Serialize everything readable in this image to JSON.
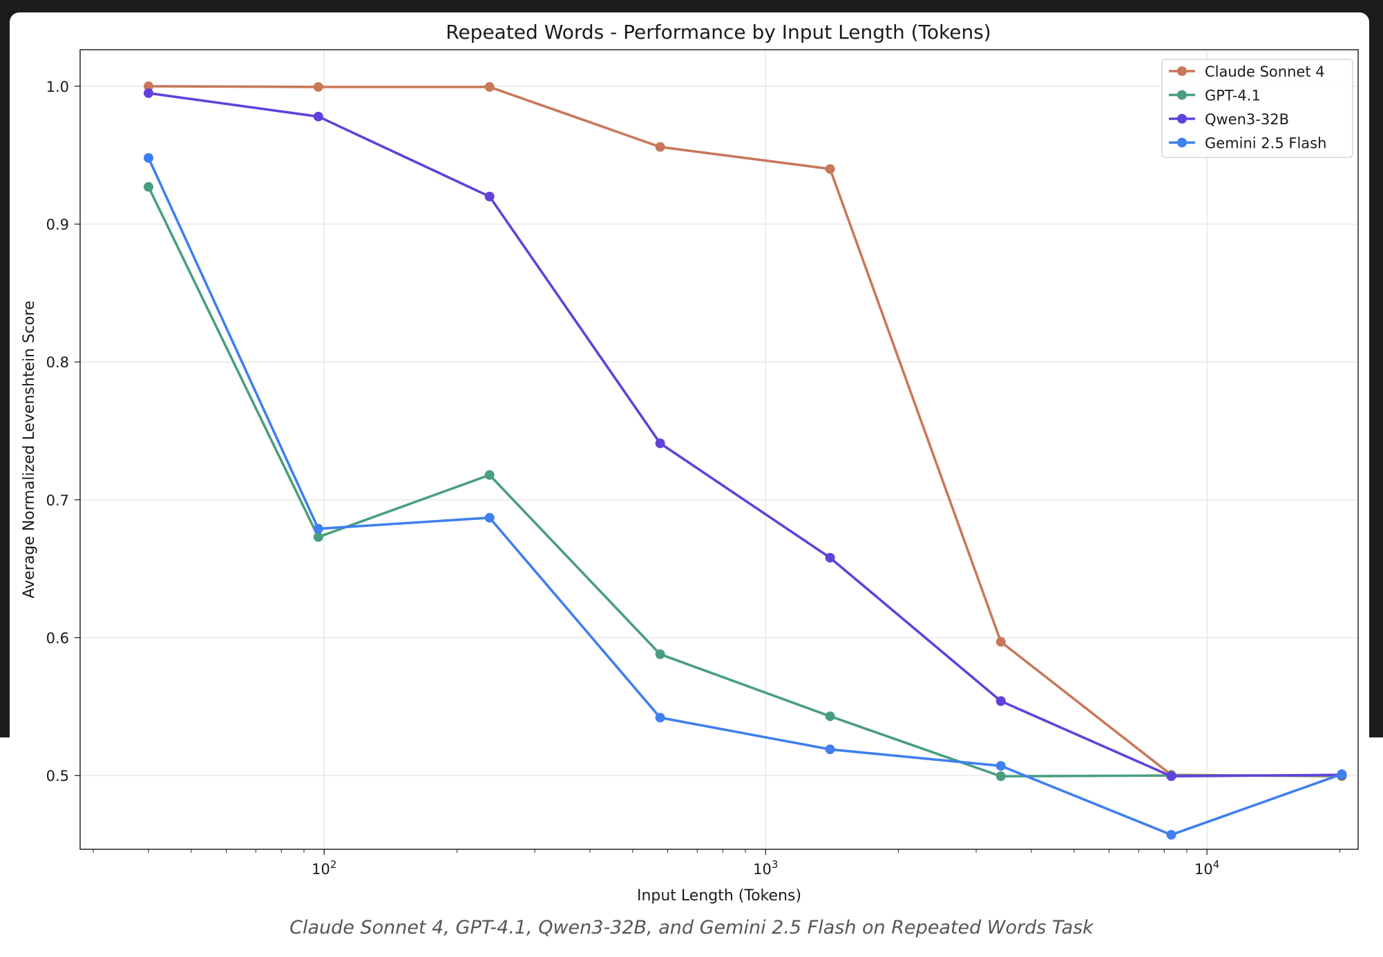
{
  "caption": "Claude Sonnet 4, GPT-4.1, Qwen3-32B, and Gemini 2.5 Flash on Repeated Words Task",
  "chart_data": {
    "type": "line",
    "title": "Repeated Words - Performance by Input Length (Tokens)",
    "xlabel": "Input Length (Tokens)",
    "ylabel": "Average Normalized Levenshtein Score",
    "xscale": "log",
    "xlim": [
      28,
      22000
    ],
    "ylim": [
      0.4465,
      1.0265
    ],
    "xticks": [
      {
        "value": 100,
        "base": "10",
        "exp": "2"
      },
      {
        "value": 1000,
        "base": "10",
        "exp": "3"
      },
      {
        "value": 10000,
        "base": "10",
        "exp": "4"
      }
    ],
    "yticks": [
      0.5,
      0.6,
      0.7,
      0.8,
      0.9,
      1.0
    ],
    "ytick_labels": [
      "0.5",
      "0.6",
      "0.7",
      "0.8",
      "0.9",
      "1.0"
    ],
    "grid": true,
    "legend_position": "top-right",
    "x": [
      40,
      97,
      237,
      577,
      1400,
      3412,
      8300,
      20200
    ],
    "series": [
      {
        "name": "Claude Sonnet 4",
        "color": "#c8785a",
        "values": [
          1.0,
          0.9995,
          0.9995,
          0.956,
          0.94,
          0.597,
          0.5005,
          0.4995
        ]
      },
      {
        "name": "GPT-4.1",
        "color": "#4a9e80",
        "values": [
          0.927,
          0.673,
          0.718,
          0.588,
          0.543,
          0.4995,
          0.5,
          0.5
        ]
      },
      {
        "name": "Qwen3-32B",
        "color": "#6041dc",
        "values": [
          0.995,
          0.978,
          0.92,
          0.741,
          0.658,
          0.554,
          0.4995,
          0.5005
        ]
      },
      {
        "name": "Gemini 2.5 Flash",
        "color": "#3f7ff0",
        "values": [
          0.948,
          0.679,
          0.687,
          0.542,
          0.519,
          0.507,
          0.457,
          0.501
        ]
      }
    ]
  }
}
